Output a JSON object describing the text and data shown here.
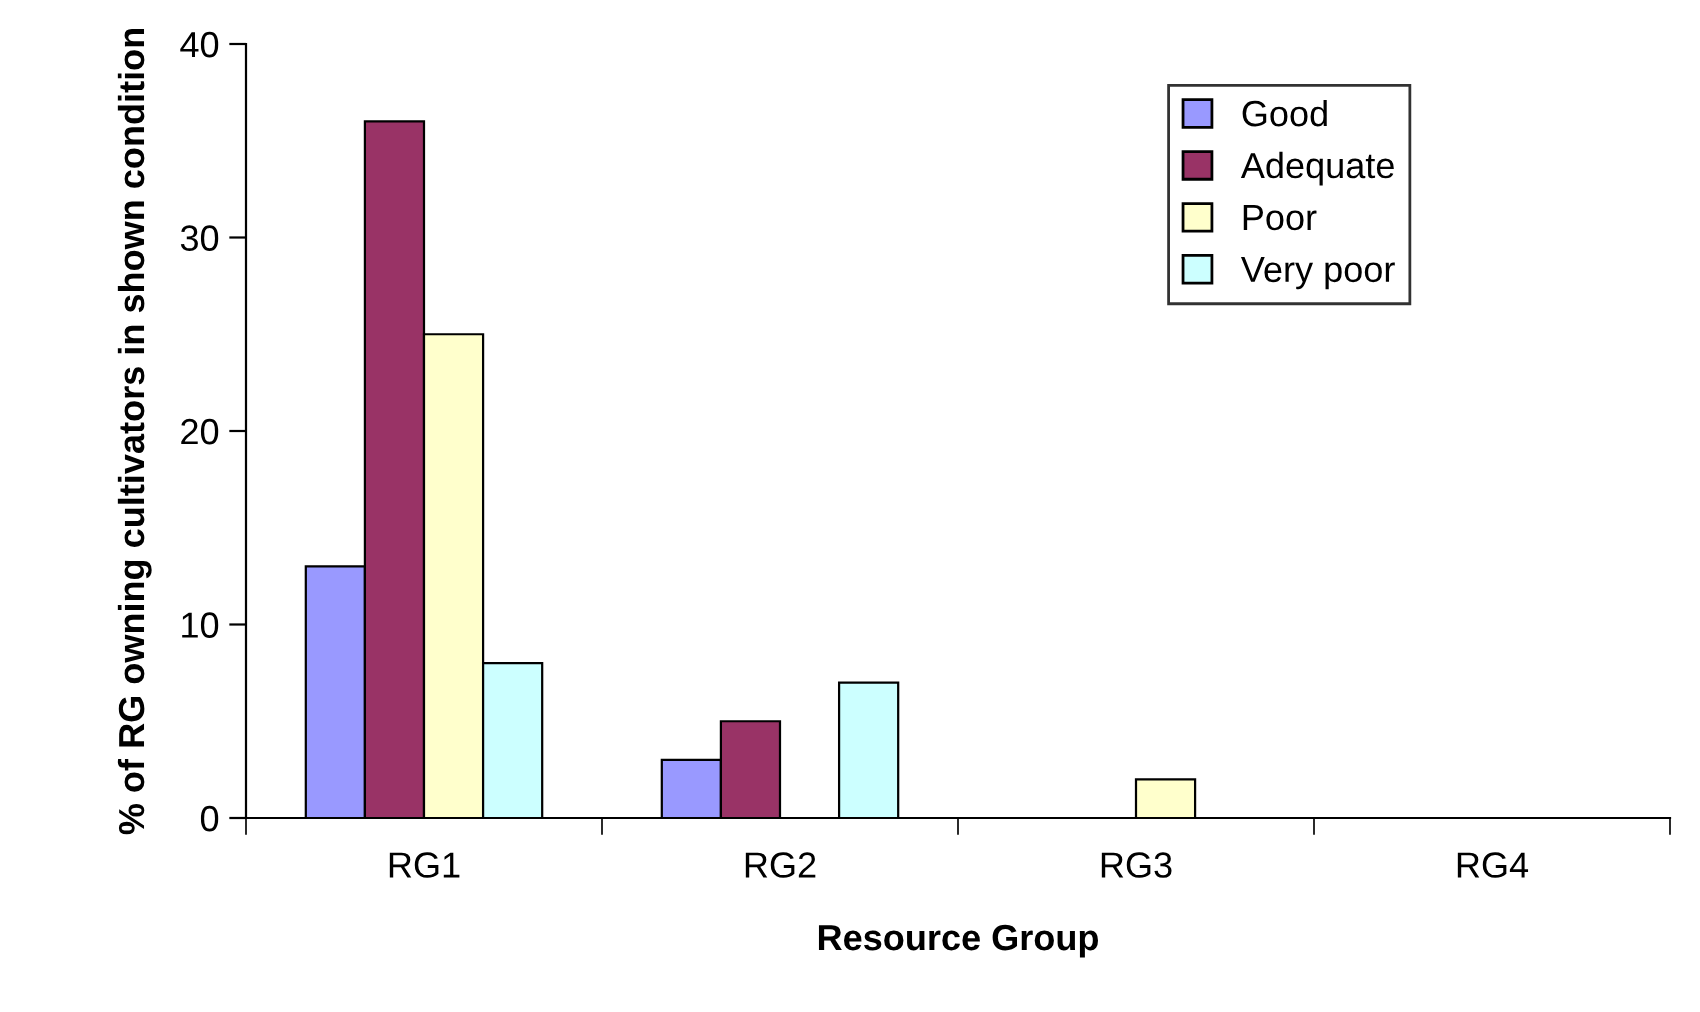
{
  "chart_data": {
    "type": "bar",
    "xlabel": "Resource Group",
    "ylabel": "% of RG owning cultivators in shown condition",
    "categories": [
      "RG1",
      "RG2",
      "RG3",
      "RG4"
    ],
    "series": [
      {
        "name": "Good",
        "color": "#9999ff",
        "values": [
          13,
          3,
          null,
          null
        ]
      },
      {
        "name": "Adequate",
        "color": "#993366",
        "values": [
          36,
          5,
          null,
          null
        ]
      },
      {
        "name": "Poor",
        "color": "#ffffcc",
        "values": [
          25,
          null,
          2,
          null
        ]
      },
      {
        "name": "Very poor",
        "color": "#ccffff",
        "values": [
          8,
          7,
          null,
          null
        ]
      }
    ],
    "ylim": [
      0,
      40
    ],
    "yticks": [
      0,
      10,
      20,
      30,
      40
    ],
    "grid": false,
    "legend": "top right"
  }
}
